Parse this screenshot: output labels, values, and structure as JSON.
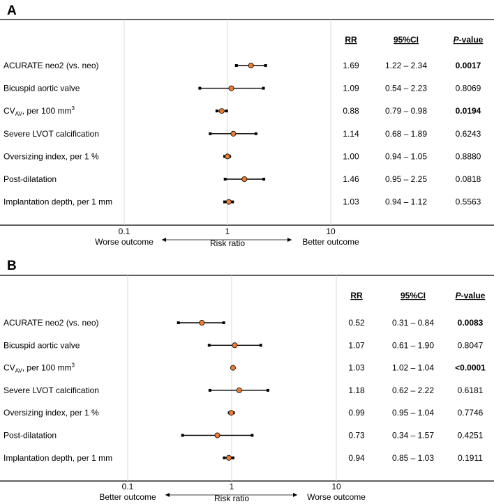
{
  "columns": {
    "rr": "RR",
    "ci": "95%CI",
    "p_italic": "P",
    "p_rest": "-value"
  },
  "axis": {
    "ticks": [
      "0.1",
      "1",
      "10"
    ],
    "label": "Risk ratio"
  },
  "chart_data": [
    {
      "type": "forest",
      "panel": "A",
      "scale": "log",
      "xlim": [
        0.1,
        10
      ],
      "left_label": "Worse outcome",
      "right_label": "Better outcome",
      "xlabel": "Risk ratio",
      "rows": [
        {
          "label": "ACURATE neo2 (vs. neo)",
          "rr": 1.69,
          "lo": 1.22,
          "hi": 2.34,
          "rr_text": "1.69",
          "ci_text": "1.22 – 2.34",
          "p": "0.0017",
          "sig": true
        },
        {
          "label": "Bicuspid aortic valve",
          "rr": 1.09,
          "lo": 0.54,
          "hi": 2.23,
          "rr_text": "1.09",
          "ci_text": "0.54 – 2.23",
          "p": "0.8069",
          "sig": false
        },
        {
          "label": "CV",
          "sub": "AV",
          "suffix": ", per 100 mm",
          "sup": "3",
          "rr": 0.88,
          "lo": 0.79,
          "hi": 0.98,
          "rr_text": "0.88",
          "ci_text": "0.79 – 0.98",
          "p": "0.0194",
          "sig": true
        },
        {
          "label": "Severe LVOT calcification",
          "rr": 1.14,
          "lo": 0.68,
          "hi": 1.89,
          "rr_text": "1.14",
          "ci_text": "0.68 – 1.89",
          "p": "0.6243",
          "sig": false
        },
        {
          "label": "Oversizing index, per 1 %",
          "rr": 1.0,
          "lo": 0.94,
          "hi": 1.05,
          "rr_text": "1.00",
          "ci_text": "0.94 – 1.05",
          "p": "0.8880",
          "sig": false
        },
        {
          "label": "Post-dilatation",
          "rr": 1.46,
          "lo": 0.95,
          "hi": 2.25,
          "rr_text": "1.46",
          "ci_text": "0.95 – 2.25",
          "p": "0.0818",
          "sig": false
        },
        {
          "label": "Implantation depth, per 1 mm",
          "rr": 1.03,
          "lo": 0.94,
          "hi": 1.12,
          "rr_text": "1.03",
          "ci_text": "0.94 – 1.12",
          "p": "0.5563",
          "sig": false
        }
      ]
    },
    {
      "type": "forest",
      "panel": "B",
      "scale": "log",
      "xlim": [
        0.1,
        10
      ],
      "left_label": "Better outcome",
      "right_label": "Worse outcome",
      "xlabel": "Risk ratio",
      "rows": [
        {
          "label": "ACURATE neo2 (vs. neo)",
          "rr": 0.52,
          "lo": 0.31,
          "hi": 0.84,
          "rr_text": "0.52",
          "ci_text": "0.31 – 0.84",
          "p": "0.0083",
          "sig": true
        },
        {
          "label": "Bicuspid aortic valve",
          "rr": 1.07,
          "lo": 0.61,
          "hi": 1.9,
          "rr_text": "1.07",
          "ci_text": "0.61 – 1.90",
          "p": "0.8047",
          "sig": false
        },
        {
          "label": "CV",
          "sub": "AV",
          "suffix": ", per 100 mm",
          "sup": "3",
          "rr": 1.03,
          "lo": 1.02,
          "hi": 1.04,
          "rr_text": "1.03",
          "ci_text": "1.02 – 1.04",
          "p": "<0.0001",
          "sig": true
        },
        {
          "label": "Severe LVOT calcification",
          "rr": 1.18,
          "lo": 0.62,
          "hi": 2.22,
          "rr_text": "1.18",
          "ci_text": "0.62 – 2.22",
          "p": "0.6181",
          "sig": false
        },
        {
          "label": "Oversizing index, per 1 %",
          "rr": 0.99,
          "lo": 0.95,
          "hi": 1.04,
          "rr_text": "0.99",
          "ci_text": "0.95 – 1.04",
          "p": "0.7746",
          "sig": false
        },
        {
          "label": "Post-dilatation",
          "rr": 0.73,
          "lo": 0.34,
          "hi": 1.57,
          "rr_text": "0.73",
          "ci_text": "0.34 – 1.57",
          "p": "0.4251",
          "sig": false
        },
        {
          "label": "Implantation depth, per 1 mm",
          "rr": 0.94,
          "lo": 0.85,
          "hi": 1.03,
          "rr_text": "0.94",
          "ci_text": "0.85 – 1.03",
          "p": "0.1911",
          "sig": false
        }
      ]
    }
  ],
  "colors": {
    "marker": "#ED7D31",
    "line": "#000000",
    "grid": "#D9D9D9"
  }
}
